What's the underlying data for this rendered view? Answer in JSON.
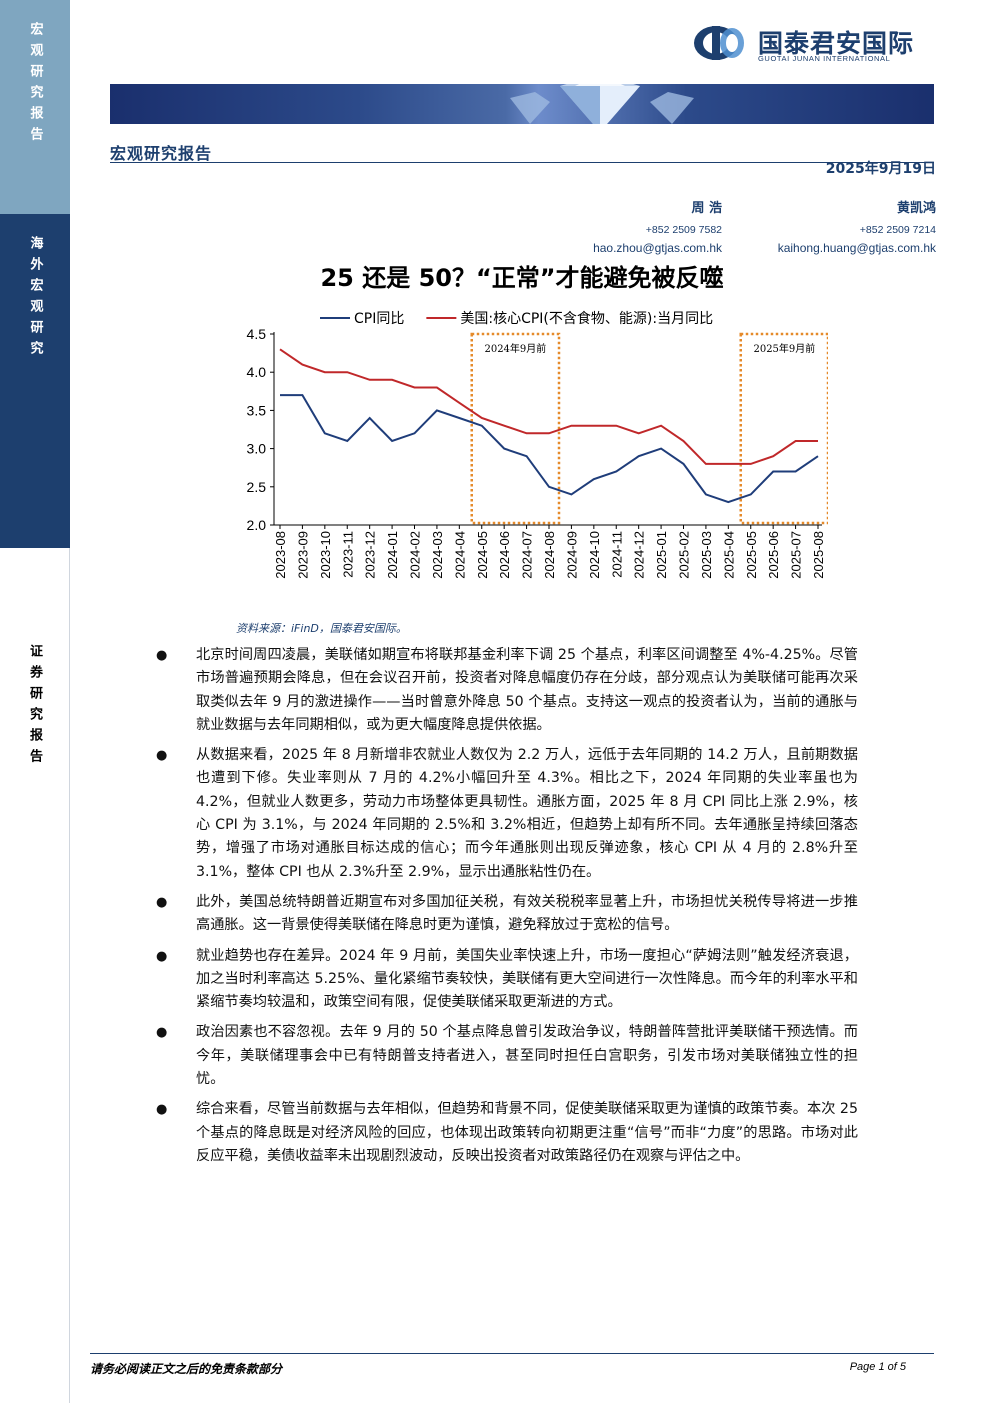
{
  "sidebar": {
    "top_label": "宏观研究报告",
    "mid_label": "海外宏观研究",
    "bottom_label": "证券研究报告"
  },
  "header": {
    "logo_cn": "国泰君安国际",
    "logo_en": "GUOTAI JUNAN INTERNATIONAL",
    "report_type": "宏观研究报告",
    "date": "2025年9月19日"
  },
  "authors": [
    {
      "name": "周 浩",
      "phone": "+852 2509 7582",
      "email": "hao.zhou@gtjas.com.hk"
    },
    {
      "name": "黄凯鸿",
      "phone": "+852 2509 7214",
      "email": "kaihong.huang@gtjas.com.hk"
    }
  ],
  "title": "25 还是 50？“正常”才能避免被反噬",
  "colors": {
    "navy": "#1d3f6e",
    "cpi_line": "#1f3d7a",
    "core_line": "#c0282a",
    "box": "#e58a2a"
  },
  "chart_data": {
    "type": "line",
    "categories": [
      "2023-08",
      "2023-09",
      "2023-10",
      "2023-11",
      "2023-12",
      "2024-01",
      "2024-02",
      "2024-03",
      "2024-04",
      "2024-05",
      "2024-06",
      "2024-07",
      "2024-08",
      "2024-09",
      "2024-10",
      "2024-11",
      "2024-12",
      "2025-01",
      "2025-02",
      "2025-03",
      "2025-04",
      "2025-05",
      "2025-06",
      "2025-07",
      "2025-08"
    ],
    "series": [
      {
        "name": "CPI同比",
        "color": "#1f3d7a",
        "values": [
          3.7,
          3.7,
          3.2,
          3.1,
          3.4,
          3.1,
          3.2,
          3.5,
          3.4,
          3.3,
          3.0,
          2.9,
          2.5,
          2.4,
          2.6,
          2.7,
          2.9,
          3.0,
          2.8,
          2.4,
          2.3,
          2.4,
          2.7,
          2.7,
          2.9
        ]
      },
      {
        "name": "美国:核心CPI(不含食物、能源):当月同比",
        "color": "#c0282a",
        "values": [
          4.3,
          4.1,
          4.0,
          4.0,
          3.9,
          3.9,
          3.8,
          3.8,
          3.6,
          3.4,
          3.3,
          3.2,
          3.2,
          3.3,
          3.3,
          3.3,
          3.2,
          3.3,
          3.1,
          2.8,
          2.8,
          2.8,
          2.9,
          3.1,
          3.1
        ]
      }
    ],
    "ylim": [
      2.0,
      4.5
    ],
    "yticks": [
      "4.5",
      "4.0",
      "3.5",
      "3.0",
      "2.5",
      "2.0"
    ],
    "legend": "top",
    "grid": false,
    "annotations": [
      {
        "label": "2024年9月前",
        "from": "2024-05",
        "to": "2024-08"
      },
      {
        "label": "2025年9月前",
        "from": "2025-05",
        "to": "2025-08"
      }
    ]
  },
  "source": "资料来源：iFinD，国泰君安国际。",
  "bullets": [
    "北京时间周四凌晨，美联储如期宣布将联邦基金利率下调 25 个基点，利率区间调整至 4%-4.25%。尽管市场普遍预期会降息，但在会议召开前，投资者对降息幅度仍存在分歧，部分观点认为美联储可能再次采取类似去年 9 月的激进操作——当时曾意外降息 50 个基点。支持这一观点的投资者认为，当前的通胀与就业数据与去年同期相似，或为更大幅度降息提供依据。",
    "从数据来看，2025 年 8 月新增非农就业人数仅为 2.2 万人，远低于去年同期的 14.2 万人，且前期数据也遭到下修。失业率则从 7 月的 4.2%小幅回升至 4.3%。相比之下，2024 年同期的失业率虽也为 4.2%，但就业人数更多，劳动力市场整体更具韧性。通胀方面，2025 年 8 月 CPI 同比上涨 2.9%，核心 CPI 为 3.1%，与 2024 年同期的 2.5%和 3.2%相近，但趋势上却有所不同。去年通胀呈持续回落态势，增强了市场对通胀目标达成的信心；而今年通胀则出现反弹迹象，核心 CPI 从 4 月的 2.8%升至 3.1%，整体 CPI 也从 2.3%升至 2.9%，显示出通胀粘性仍在。",
    "此外，美国总统特朗普近期宣布对多国加征关税，有效关税税率显著上升，市场担忧关税传导将进一步推高通胀。这一背景使得美联储在降息时更为谨慎，避免释放过于宽松的信号。",
    "就业趋势也存在差异。2024 年 9 月前，美国失业率快速上升，市场一度担心“萨姆法则”触发经济衰退，加之当时利率高达 5.25%、量化紧缩节奏较快，美联储有更大空间进行一次性降息。而今年的利率水平和紧缩节奏均较温和，政策空间有限，促使美联储采取更渐进的方式。",
    "政治因素也不容忽视。去年 9 月的 50 个基点降息曾引发政治争议，特朗普阵营批评美联储干预选情。而今年，美联储理事会中已有特朗普支持者进入，甚至同时担任白宫职务，引发市场对美联储独立性的担忧。",
    "综合来看，尽管当前数据与去年相似，但趋势和背景不同，促使美联储采取更为谨慎的政策节奏。本次 25 个基点的降息既是对经济风险的回应，也体现出政策转向初期更注重“信号”而非“力度”的思路。市场对此反应平稳，美债收益率未出现剧烈波动，反映出投资者对政策路径仍在观察与评估之中。"
  ],
  "footer": {
    "disclaimer": "请务必阅读正文之后的免责条款部分",
    "page": "Page 1 of 5"
  }
}
